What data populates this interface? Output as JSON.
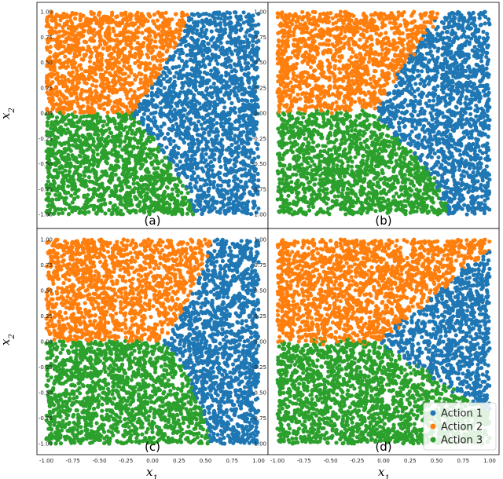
{
  "chart_data": {
    "type": "scatter",
    "xlim": [
      -1.0,
      1.0
    ],
    "ylim": [
      -1.0,
      1.0
    ],
    "xticks": [
      "-1.00",
      "-0.75",
      "-0.50",
      "-0.25",
      "0.00",
      "0.25",
      "0.50",
      "0.75",
      "1.00"
    ],
    "yticks": [
      "1.00",
      "0.75",
      "0.50",
      "0.25",
      "0.00",
      "-0.25",
      "-0.50",
      "-0.75",
      "-1.00"
    ],
    "xlabel": "x",
    "xlabel_sub": "1",
    "ylabel": "x",
    "ylabel_sub": "2",
    "grid": false,
    "legend": {
      "placement": "lower-right",
      "panel": "d",
      "entries": [
        {
          "label": "Action 1",
          "color": "#1f77b4"
        },
        {
          "label": "Action 2",
          "color": "#ff7f0e"
        },
        {
          "label": "Action 3",
          "color": "#2ca02c"
        }
      ]
    },
    "series_colors": [
      "#1f77b4",
      "#ff7f0e",
      "#2ca02c"
    ],
    "panels": [
      {
        "id": "a",
        "label": "(a)",
        "boundary": "smooth",
        "junction": [
          -0.2,
          0.0
        ],
        "upper_boundary": [
          [
            -0.2,
            0.0
          ],
          [
            0.05,
            0.35
          ],
          [
            0.3,
            0.8
          ],
          [
            0.35,
            1.0
          ]
        ],
        "lower_boundary": [
          [
            -0.2,
            0.0
          ],
          [
            0.05,
            -0.3
          ],
          [
            0.35,
            -0.8
          ],
          [
            0.4,
            -1.0
          ]
        ],
        "left_boundary_y": 0.0
      },
      {
        "id": "b",
        "label": "(b)",
        "boundary": "jagged",
        "junction": [
          -0.1,
          0.0
        ],
        "upper_boundary": [
          [
            -0.1,
            0.0
          ],
          [
            0.15,
            0.4
          ],
          [
            0.45,
            0.85
          ],
          [
            0.55,
            1.0
          ]
        ],
        "lower_boundary": [
          [
            -0.1,
            0.0
          ],
          [
            0.15,
            -0.25
          ],
          [
            0.45,
            -0.6
          ],
          [
            0.6,
            -1.0
          ]
        ],
        "left_boundary_y": 0.0
      },
      {
        "id": "c",
        "label": "(c)",
        "boundary": "smooth",
        "junction": [
          0.1,
          0.0
        ],
        "upper_boundary": [
          [
            0.1,
            0.0
          ],
          [
            0.35,
            0.4
          ],
          [
            0.52,
            0.8
          ],
          [
            0.55,
            1.0
          ]
        ],
        "lower_boundary": [
          [
            0.1,
            0.0
          ],
          [
            0.3,
            -0.25
          ],
          [
            0.5,
            -0.75
          ],
          [
            0.55,
            -1.0
          ]
        ],
        "left_boundary_y": 0.0
      },
      {
        "id": "d",
        "label": "(d)",
        "boundary": "jagged",
        "junction": [
          -0.05,
          0.0
        ],
        "upper_boundary": [
          [
            -0.05,
            0.0
          ],
          [
            0.3,
            0.3
          ],
          [
            0.65,
            0.62
          ],
          [
            1.0,
            0.9
          ]
        ],
        "lower_boundary": [
          [
            -0.05,
            0.0
          ],
          [
            0.25,
            -0.2
          ],
          [
            0.55,
            -0.4
          ],
          [
            0.7,
            -0.5
          ],
          [
            1.0,
            -0.7
          ]
        ],
        "left_boundary_y": 0.0
      }
    ]
  }
}
